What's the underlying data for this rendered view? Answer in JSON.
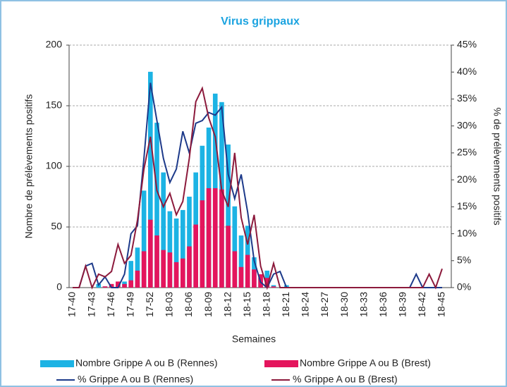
{
  "chart_data": {
    "type": "bar",
    "title": "Virus grippaux",
    "x_label": "Semaines",
    "y_label": "Nombre de prélèvements positifs",
    "y2_label": "% de prélèvements positifs",
    "categories": [
      "17-40",
      null,
      null,
      "17-43",
      null,
      null,
      "17-46",
      null,
      null,
      "17-49",
      null,
      null,
      "17-52",
      null,
      null,
      "18-03",
      null,
      null,
      "18-06",
      null,
      null,
      "18-09",
      null,
      null,
      "18-12",
      null,
      null,
      "18-15",
      null,
      null,
      "18-18",
      null,
      null,
      "18-21",
      null,
      null,
      "18-24",
      null,
      null,
      "18-27",
      null,
      null,
      "18-30",
      null,
      null,
      "18-33",
      null,
      null,
      "18-36",
      null,
      null,
      "18-39",
      null,
      null,
      "18-42",
      null,
      null,
      "18-45"
    ],
    "series": [
      {
        "name": "Nombre Grippe A ou B (Rennes)",
        "type": "bar",
        "color": "#1cb3e4",
        "values": [
          0,
          0,
          0,
          0,
          3,
          1,
          2,
          3,
          5,
          22,
          33,
          80,
          178,
          136,
          95,
          63,
          57,
          64,
          75,
          95,
          117,
          132,
          160,
          153,
          118,
          67,
          43,
          51,
          25,
          8,
          14,
          2,
          0,
          2,
          0,
          0,
          0,
          0,
          0,
          0,
          0,
          0,
          0,
          0,
          0,
          0,
          0,
          0,
          0,
          0,
          0,
          0,
          0,
          0,
          0,
          0,
          0,
          0
        ]
      },
      {
        "name": "Nombre Grippe A ou B (Brest)",
        "type": "bar",
        "color": "#e4155d",
        "values": [
          0,
          0,
          0,
          0,
          0,
          1,
          3,
          5,
          3,
          6,
          14,
          30,
          56,
          43,
          31,
          29,
          21,
          24,
          34,
          52,
          72,
          82,
          82,
          81,
          51,
          30,
          17,
          27,
          15,
          11,
          8,
          1,
          0,
          0,
          0,
          0,
          0,
          0,
          0,
          0,
          0,
          0,
          0,
          0,
          0,
          0,
          0,
          0,
          0,
          0,
          0,
          0,
          0,
          0,
          0,
          0,
          0,
          0
        ]
      },
      {
        "name": "% Grippe A ou B (Rennes)",
        "type": "line",
        "axis": "y2",
        "color": "#1d3a8a",
        "values": [
          0,
          0,
          4,
          4.5,
          0.5,
          2,
          0,
          0,
          2.5,
          10,
          11.5,
          24,
          38,
          31,
          24,
          19.5,
          22,
          29,
          25,
          30.5,
          31,
          32.5,
          32,
          33.5,
          21,
          16.5,
          21,
          14,
          5,
          1,
          0,
          2.5,
          3,
          0,
          0,
          0,
          0,
          0,
          0,
          0,
          0,
          0,
          0,
          0,
          0,
          0,
          0,
          0,
          0,
          0,
          0,
          0,
          0,
          2.5,
          0,
          0,
          0,
          0
        ]
      },
      {
        "name": "% Grippe A ou B (Brest)",
        "type": "line",
        "axis": "y2",
        "color": "#8c1a3c",
        "values": [
          0,
          0,
          4,
          0,
          2.5,
          2,
          3,
          8,
          4.5,
          6,
          12.5,
          22,
          28,
          18,
          15,
          17.5,
          13.5,
          16,
          24,
          34.5,
          37,
          31.5,
          28,
          18,
          15,
          25,
          13,
          8,
          13.5,
          4,
          0,
          4.5,
          0,
          0,
          0,
          0,
          0,
          0,
          0,
          0,
          0,
          0,
          0,
          0,
          0,
          0,
          0,
          0,
          0,
          0,
          0,
          0,
          0,
          0,
          0,
          2.5,
          0,
          3.5
        ]
      }
    ],
    "ylim": [
      0,
      200
    ],
    "yticks": [
      0,
      50,
      100,
      150,
      200
    ],
    "y2lim": [
      0,
      45
    ],
    "y2ticks": [
      {
        "value": 0,
        "label": "0%"
      },
      {
        "value": 5,
        "label": "5%"
      },
      {
        "value": 10,
        "label": "10%"
      },
      {
        "value": 15,
        "label": "15%"
      },
      {
        "value": 20,
        "label": "20%"
      },
      {
        "value": 25,
        "label": "25%"
      },
      {
        "value": 30,
        "label": "30%"
      },
      {
        "value": 35,
        "label": "35%"
      },
      {
        "value": 40,
        "label": "40%"
      },
      {
        "value": 45,
        "label": "45%"
      }
    ],
    "grid": true
  }
}
